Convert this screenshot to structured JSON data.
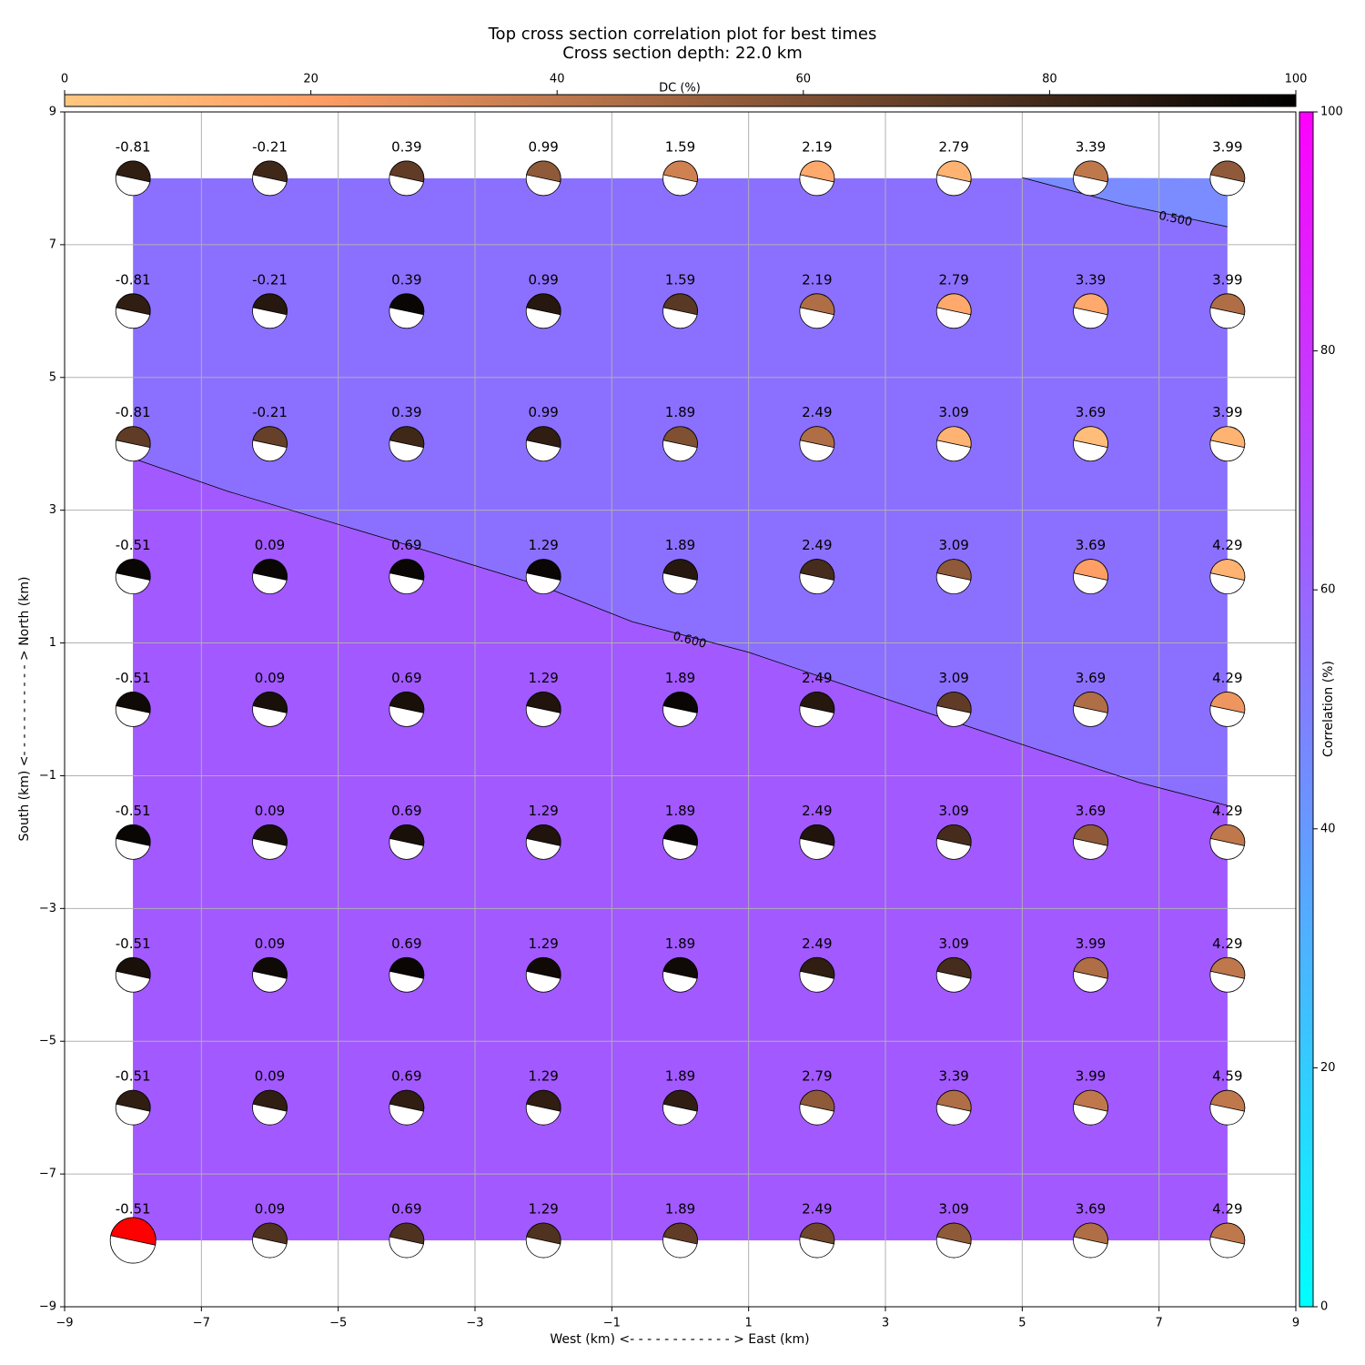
{
  "chart_data": {
    "type": "beachball",
    "title": "Top cross section correlation plot for best times",
    "subtitle": "Cross section depth: 22.0 km",
    "xlabel": "West (km) <- - - - - - - - - - - - > East (km)",
    "ylabel": "South (km) <- - - - - - - - - - - > North (km)",
    "xlim": [
      -9,
      9
    ],
    "ylim": [
      -9,
      9
    ],
    "xticks": [
      {
        "value": -9,
        "label": "−9"
      },
      {
        "value": -7,
        "label": "−7"
      },
      {
        "value": -5,
        "label": "−5"
      },
      {
        "value": -3,
        "label": "−3"
      },
      {
        "value": -1,
        "label": "−1"
      },
      1,
      3,
      5,
      7,
      9
    ],
    "yticks": [
      {
        "value": -9,
        "label": "−9"
      },
      {
        "value": -7,
        "label": "−7"
      },
      {
        "value": -5,
        "label": "−5"
      },
      {
        "value": -3,
        "label": "−3"
      },
      {
        "value": -1,
        "label": "−1"
      },
      1,
      3,
      5,
      7,
      9
    ],
    "grid": true,
    "x": [
      -8,
      -6,
      -4,
      -2,
      0,
      2,
      4,
      6,
      8
    ],
    "y": [
      8,
      6,
      4,
      2,
      0,
      -2,
      -4,
      -6,
      -8
    ],
    "labels": [
      [
        "-0.81",
        "-0.21",
        "0.39",
        "0.99",
        "1.59",
        "2.19",
        "2.79",
        "3.39",
        "3.99"
      ],
      [
        "-0.81",
        "-0.21",
        "0.39",
        "0.99",
        "1.59",
        "2.19",
        "2.79",
        "3.39",
        "3.99"
      ],
      [
        "-0.81",
        "-0.21",
        "0.39",
        "0.99",
        "1.89",
        "2.49",
        "3.09",
        "3.69",
        "3.99"
      ],
      [
        "-0.51",
        "0.09",
        "0.69",
        "1.29",
        "1.89",
        "2.49",
        "3.09",
        "3.69",
        "4.29"
      ],
      [
        "-0.51",
        "0.09",
        "0.69",
        "1.29",
        "1.89",
        "2.49",
        "3.09",
        "3.69",
        "4.29"
      ],
      [
        "-0.51",
        "0.09",
        "0.69",
        "1.29",
        "1.89",
        "2.49",
        "3.09",
        "3.69",
        "4.29"
      ],
      [
        "-0.51",
        "0.09",
        "0.69",
        "1.29",
        "1.89",
        "2.49",
        "3.09",
        "3.99",
        "4.29"
      ],
      [
        "-0.51",
        "0.09",
        "0.69",
        "1.29",
        "1.89",
        "2.79",
        "3.39",
        "3.99",
        "4.59"
      ],
      [
        "-0.51",
        "0.09",
        "0.69",
        "1.29",
        "1.89",
        "2.49",
        "3.09",
        "3.69",
        "4.29"
      ]
    ],
    "dc": [
      [
        85,
        80,
        70,
        55,
        35,
        15,
        10,
        40,
        55
      ],
      [
        85,
        88,
        97,
        88,
        72,
        45,
        15,
        15,
        45
      ],
      [
        70,
        68,
        80,
        85,
        60,
        45,
        10,
        5,
        10
      ],
      [
        97,
        97,
        97,
        97,
        88,
        78,
        55,
        20,
        10
      ],
      [
        95,
        92,
        92,
        90,
        97,
        88,
        70,
        45,
        25
      ],
      [
        97,
        92,
        92,
        90,
        97,
        90,
        78,
        55,
        40
      ],
      [
        92,
        95,
        97,
        95,
        95,
        85,
        78,
        45,
        40
      ],
      [
        85,
        85,
        85,
        85,
        85,
        55,
        45,
        40,
        40
      ],
      [
        null,
        75,
        75,
        75,
        70,
        65,
        55,
        45,
        40
      ]
    ],
    "best": [
      8,
      0
    ],
    "best_color": "#ff0000",
    "fill_colors": [
      "#7a8cff",
      "#8b70ff",
      "#a259ff"
    ],
    "contours": [
      {
        "level": 0.6,
        "label": "0.600",
        "x": [
          -8,
          -6.6,
          -4,
          -2,
          -0.7,
          1,
          3,
          5,
          6.7,
          8
        ],
        "y": [
          3.78,
          3.28,
          2.48,
          1.85,
          1.32,
          0.86,
          0.16,
          -0.53,
          -1.1,
          -1.45
        ]
      },
      {
        "level": 0.5,
        "label": "0.500",
        "x": [
          5,
          6.5,
          8
        ],
        "y": [
          8.01,
          7.6,
          7.27
        ]
      }
    ],
    "dc_label": "DC (%)",
    "dc_lim": [
      0,
      100
    ],
    "dc_ticks": [
      0,
      20,
      40,
      60,
      80,
      100
    ],
    "corr_label": "Correlation (%)",
    "corr_lim": [
      0,
      100
    ],
    "corr_ticks": [
      0,
      20,
      40,
      60,
      80,
      100
    ]
  }
}
